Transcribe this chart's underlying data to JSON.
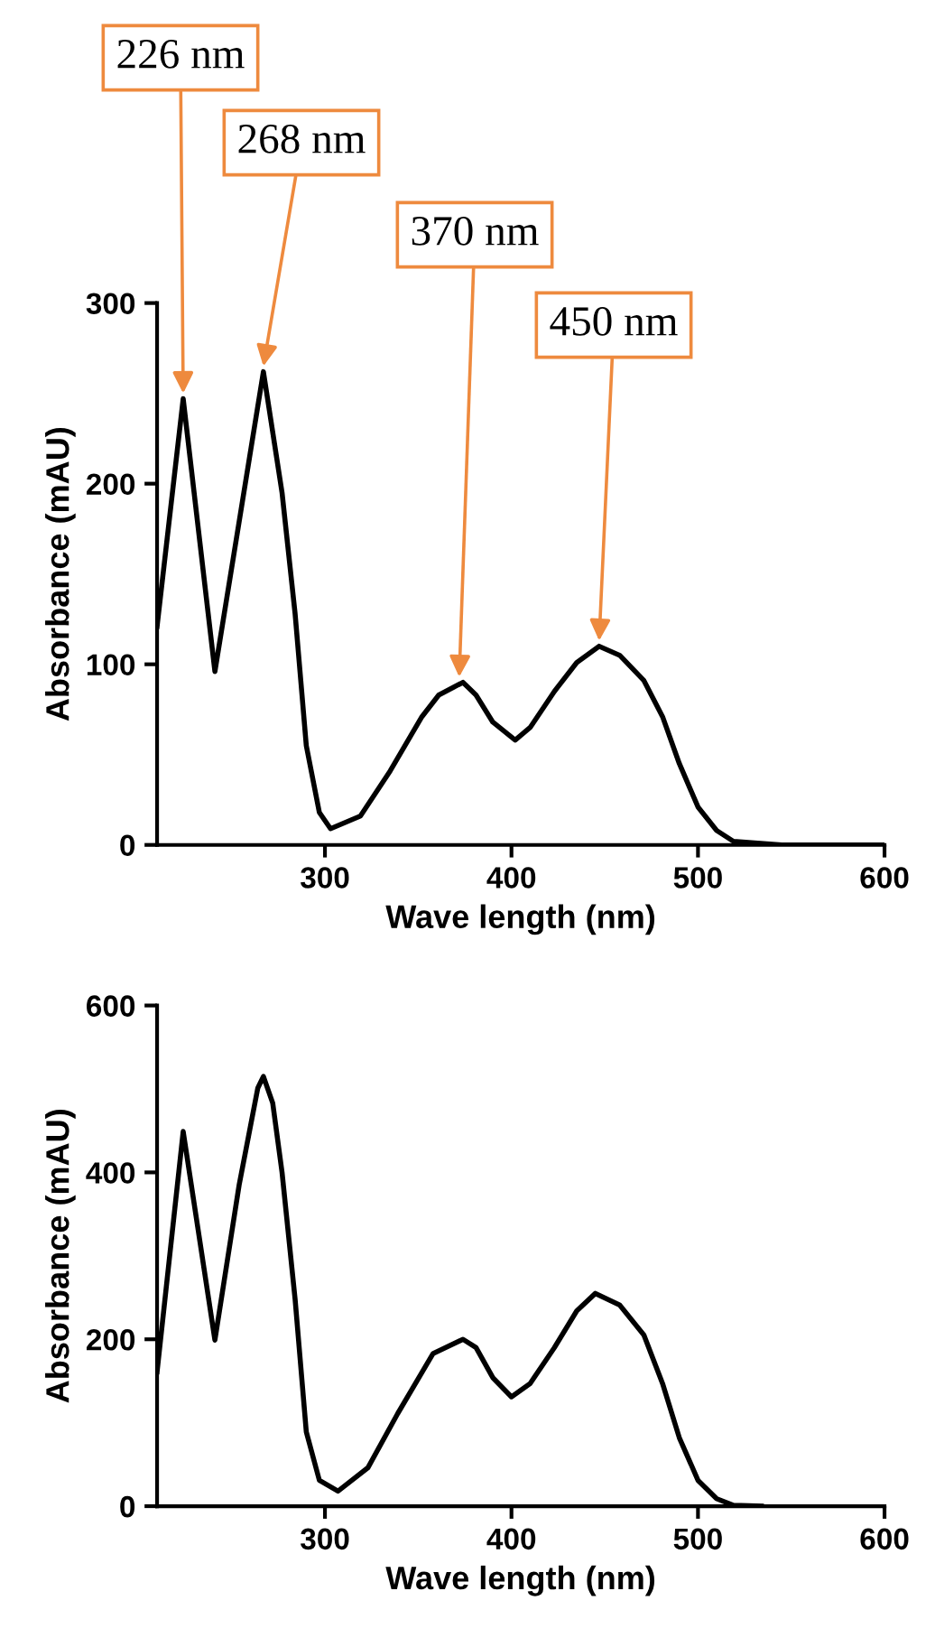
{
  "chart_data": [
    {
      "type": "line",
      "xlabel": "Wave length (nm)",
      "ylabel": "Absorbance (mAU)",
      "xlim": [
        210,
        600
      ],
      "xticks": [
        300,
        400,
        500,
        600
      ],
      "ylim": [
        0,
        300
      ],
      "yticks": [
        0,
        100,
        200,
        300
      ],
      "grid": false,
      "line_style": "solid",
      "marker": "none",
      "annotations": [
        {
          "text": "226 nm",
          "x": 224,
          "y": 247
        },
        {
          "text": "268 nm",
          "x": 267,
          "y": 262
        },
        {
          "text": "370 nm",
          "x": 372,
          "y": 90
        },
        {
          "text": "450 nm",
          "x": 447,
          "y": 110
        }
      ],
      "series": [
        {
          "color": "#000000",
          "x": [
            210,
            224,
            241,
            267,
            277,
            284,
            290,
            297,
            303,
            319,
            335,
            352,
            361,
            374,
            381,
            390,
            402,
            410,
            423,
            435,
            447,
            458,
            471,
            481,
            490,
            500,
            510,
            519,
            545,
            600
          ],
          "values": [
            121,
            247,
            96,
            262,
            195,
            128,
            55,
            18,
            9,
            16,
            41,
            71,
            83,
            90,
            83,
            68,
            58,
            65,
            85,
            101,
            110,
            105,
            91,
            71,
            45,
            21,
            8,
            2,
            0,
            0
          ]
        }
      ]
    },
    {
      "type": "line",
      "xlabel": "Wave length (nm)",
      "ylabel": "Absorbance (mAU)",
      "xlim": [
        210,
        600
      ],
      "xticks": [
        300,
        400,
        500,
        600
      ],
      "ylim": [
        0,
        600
      ],
      "yticks": [
        0,
        200,
        400,
        600
      ],
      "grid": false,
      "line_style": "solid",
      "marker": "none",
      "series": [
        {
          "color": "#000000",
          "x": [
            210,
            224,
            241,
            254,
            264,
            267,
            272,
            277,
            284,
            290,
            297,
            307,
            323,
            339,
            358,
            374,
            381,
            390,
            400,
            410,
            423,
            435,
            445,
            458,
            471,
            481,
            490,
            500,
            510,
            519,
            534
          ],
          "values": [
            161,
            449,
            199,
            385,
            501,
            515,
            483,
            400,
            248,
            89,
            31,
            18,
            46,
            111,
            183,
            200,
            190,
            154,
            131,
            147,
            190,
            234,
            255,
            241,
            205,
            147,
            82,
            31,
            9,
            1,
            0
          ]
        }
      ]
    }
  ]
}
